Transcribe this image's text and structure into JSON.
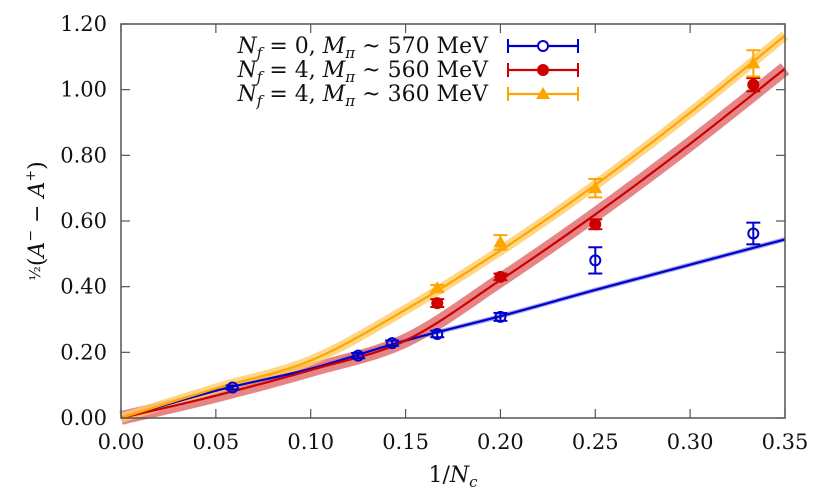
{
  "chart_data": {
    "type": "scatter",
    "title": "",
    "xlabel": "1/N_c",
    "ylabel": "½(A⁻ − A⁺)",
    "xlim": [
      0.0,
      0.35
    ],
    "ylim": [
      0.0,
      1.2
    ],
    "xticks": [
      "0.00",
      "0.05",
      "0.10",
      "0.15",
      "0.20",
      "0.25",
      "0.30",
      "0.35"
    ],
    "yticks": [
      "0.00",
      "0.20",
      "0.40",
      "0.60",
      "0.80",
      "1.00",
      "1.20"
    ],
    "grid": false,
    "legend_position": "upper-left (inside, top)",
    "series": [
      {
        "name": "N_f = 0, M_π ~ 570 MeV",
        "color": "#0000cc",
        "marker": "open-circle",
        "points": [
          {
            "x": 0.0588,
            "y": 0.093,
            "err": 0.006
          },
          {
            "x": 0.125,
            "y": 0.19,
            "err": 0.008
          },
          {
            "x": 0.1429,
            "y": 0.228,
            "err": 0.008
          },
          {
            "x": 0.1667,
            "y": 0.256,
            "err": 0.01
          },
          {
            "x": 0.2,
            "y": 0.308,
            "err": 0.012
          },
          {
            "x": 0.25,
            "y": 0.48,
            "err": 0.04
          },
          {
            "x": 0.3333,
            "y": 0.562,
            "err": 0.033
          }
        ],
        "fit_curve": [
          {
            "x": 0.0,
            "y": 0.0
          },
          {
            "x": 0.05,
            "y": 0.083
          },
          {
            "x": 0.1,
            "y": 0.15
          },
          {
            "x": 0.15,
            "y": 0.236
          },
          {
            "x": 0.2,
            "y": 0.31
          },
          {
            "x": 0.25,
            "y": 0.39
          },
          {
            "x": 0.3,
            "y": 0.467
          },
          {
            "x": 0.35,
            "y": 0.544
          }
        ],
        "band_halfwidth": 0.004
      },
      {
        "name": "N_f = 4, M_π ~ 560 MeV",
        "color": "#cc0000",
        "band_color": "#e06666",
        "marker": "filled-circle",
        "points": [
          {
            "x": 0.1667,
            "y": 0.35,
            "err": 0.012
          },
          {
            "x": 0.2,
            "y": 0.43,
            "err": 0.01
          },
          {
            "x": 0.25,
            "y": 0.59,
            "err": 0.015
          },
          {
            "x": 0.3333,
            "y": 1.015,
            "err": 0.02
          }
        ],
        "fit_curve": [
          {
            "x": 0.0,
            "y": 0.0
          },
          {
            "x": 0.05,
            "y": 0.068
          },
          {
            "x": 0.1,
            "y": 0.146
          },
          {
            "x": 0.15,
            "y": 0.236
          },
          {
            "x": 0.2,
            "y": 0.42
          },
          {
            "x": 0.25,
            "y": 0.62
          },
          {
            "x": 0.3,
            "y": 0.835
          },
          {
            "x": 0.35,
            "y": 1.064
          }
        ],
        "band_halfwidth": 0.018
      },
      {
        "name": "N_f = 4, M_π ~ 360 MeV",
        "color": "#ffa500",
        "band_color": "#ffcc66",
        "marker": "filled-triangle",
        "points": [
          {
            "x": 0.1667,
            "y": 0.395,
            "err": 0.01
          },
          {
            "x": 0.2,
            "y": 0.535,
            "err": 0.022
          },
          {
            "x": 0.25,
            "y": 0.7,
            "err": 0.028
          },
          {
            "x": 0.3333,
            "y": 1.08,
            "err": 0.04
          }
        ],
        "fit_curve": [
          {
            "x": 0.0,
            "y": 0.0
          },
          {
            "x": 0.05,
            "y": 0.09
          },
          {
            "x": 0.1,
            "y": 0.175
          },
          {
            "x": 0.15,
            "y": 0.33
          },
          {
            "x": 0.2,
            "y": 0.51
          },
          {
            "x": 0.25,
            "y": 0.71
          },
          {
            "x": 0.3,
            "y": 0.93
          },
          {
            "x": 0.35,
            "y": 1.165
          }
        ],
        "band_halfwidth": 0.012
      }
    ]
  }
}
